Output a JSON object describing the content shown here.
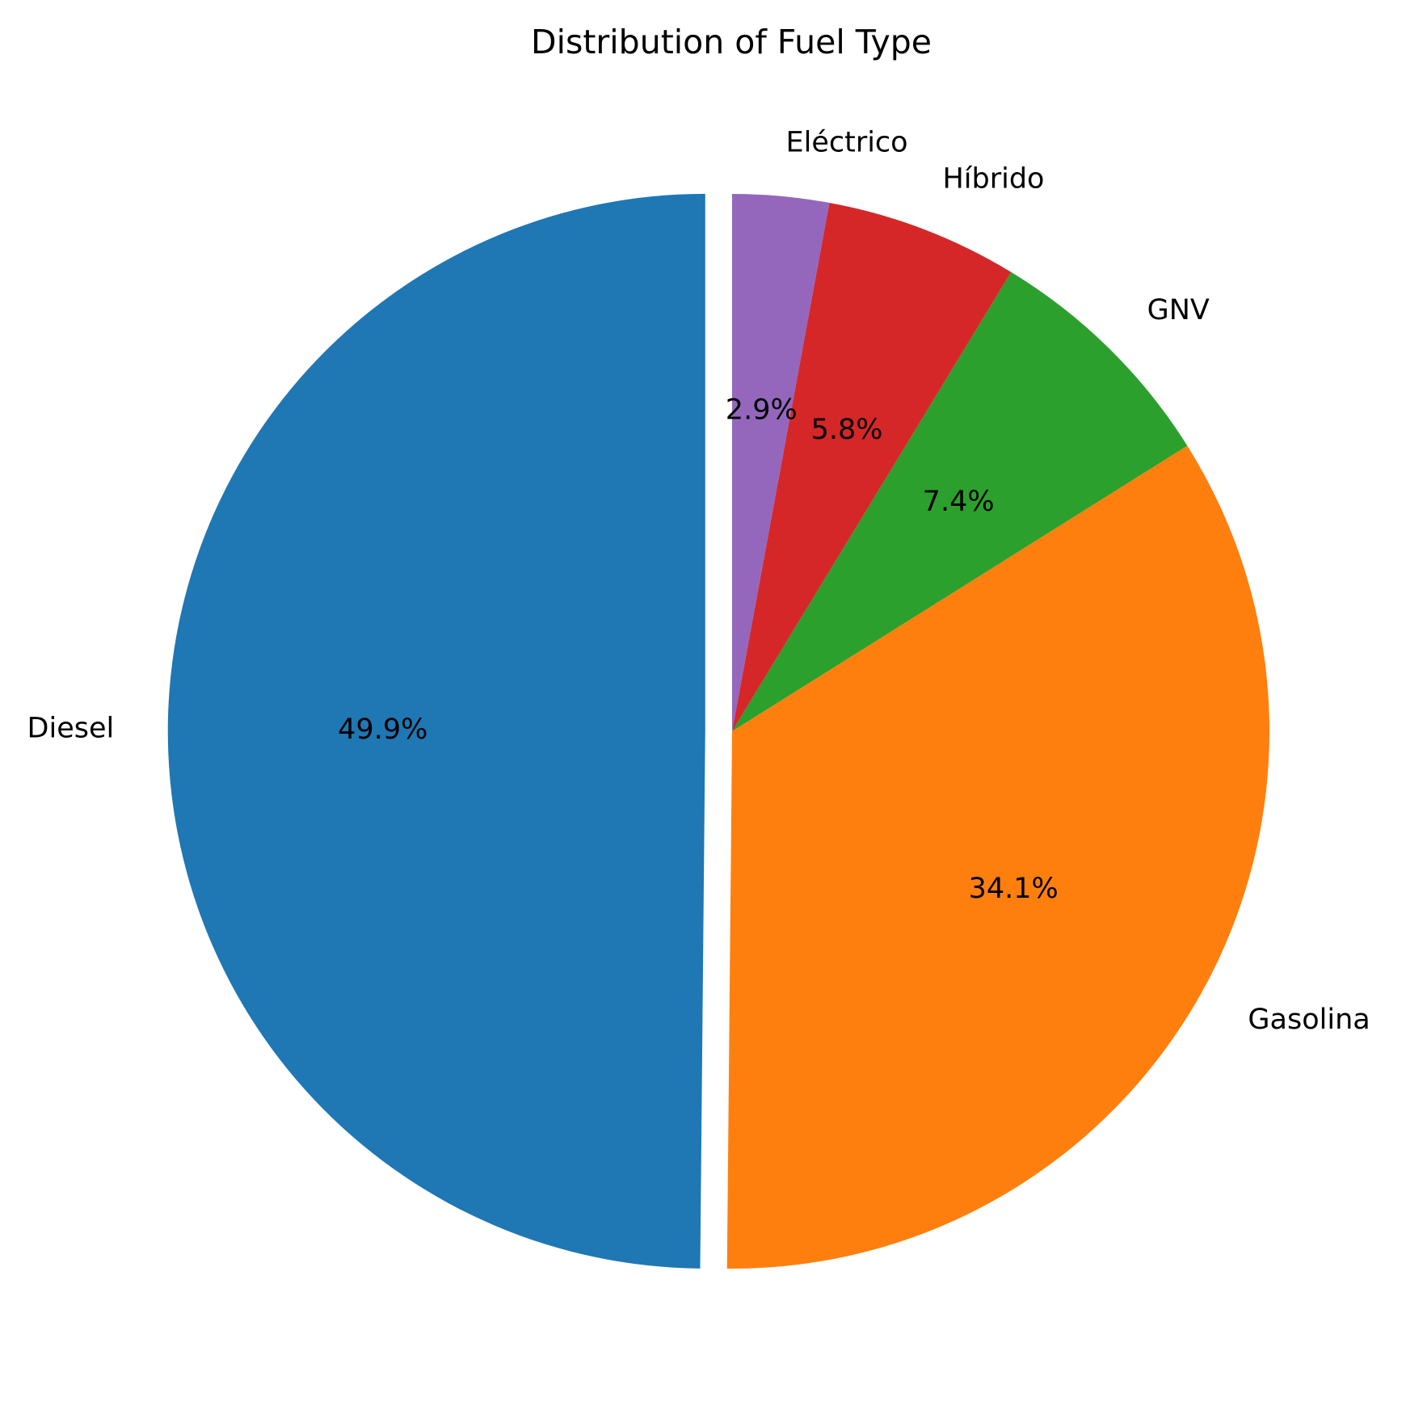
{
  "chart_data": {
    "type": "pie",
    "title": "Distribution of Fuel Type",
    "slices": [
      {
        "label": "Diesel",
        "value": 49.9,
        "pct_label": "49.9%",
        "color": "#1f77b4",
        "exploded": true
      },
      {
        "label": "Gasolina",
        "value": 34.1,
        "pct_label": "34.1%",
        "color": "#ff7f0e",
        "exploded": false
      },
      {
        "label": "GNV",
        "value": 7.4,
        "pct_label": "7.4%",
        "color": "#2ca02c",
        "exploded": false
      },
      {
        "label": "Híbrido",
        "value": 5.8,
        "pct_label": "5.8%",
        "color": "#d62728",
        "exploded": false
      },
      {
        "label": "Eléctrico",
        "value": 2.9,
        "pct_label": "2.9%",
        "color": "#9467bd",
        "exploded": false
      }
    ],
    "start_angle": "top",
    "direction": "clockwise",
    "legend": "none"
  }
}
